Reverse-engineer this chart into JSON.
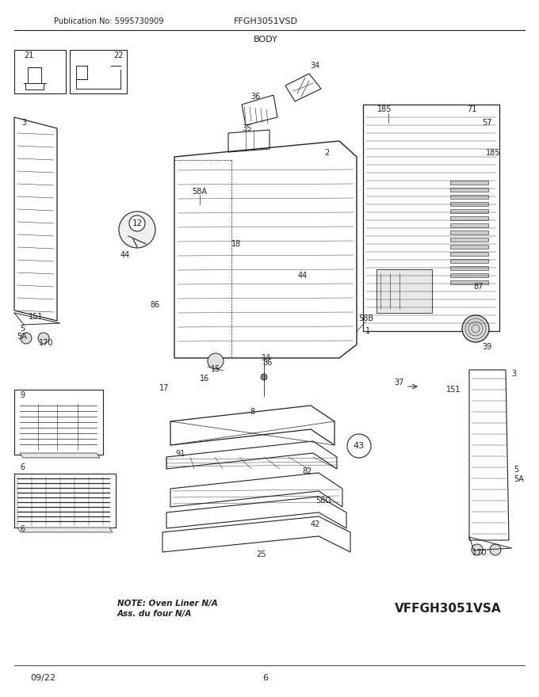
{
  "title": "FFGH3051VSD",
  "subtitle": "BODY",
  "publication": "Publication No: 5995730909",
  "date_code": "09/22",
  "page_num": "6",
  "model_code": "VFFGH3051VSA",
  "note_line1": "NOTE: Oven Liner N/A",
  "note_line2": "Ass. du four N/A",
  "bg_color": "#ffffff",
  "line_color": "#222222",
  "fig_width": 6.8,
  "fig_height": 8.8,
  "dpi": 100
}
